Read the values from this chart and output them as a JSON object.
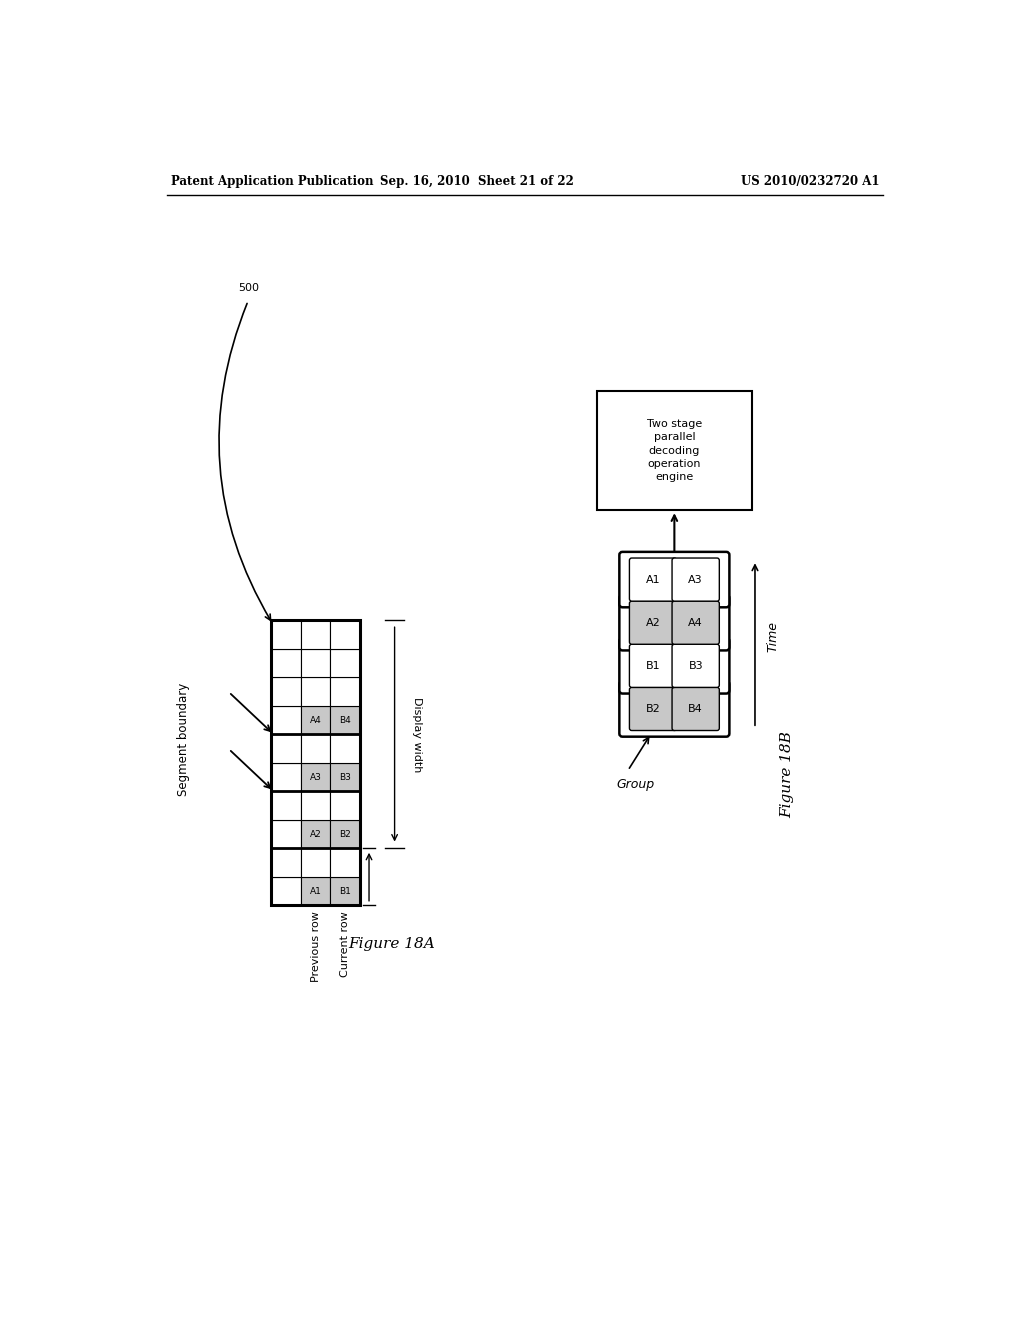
{
  "header_left": "Patent Application Publication",
  "header_mid": "Sep. 16, 2010  Sheet 21 of 22",
  "header_right": "US 2010/0232720 A1",
  "fig_label_500": "500",
  "fig18a_label": "Figure 18A",
  "fig18b_label": "Figure 18B",
  "grid_num_rows": 10,
  "grid_num_cols": 3,
  "highlighted_cells_18a": [
    {
      "row": 0,
      "col": 1,
      "label": "A1"
    },
    {
      "row": 0,
      "col": 2,
      "label": "B1"
    },
    {
      "row": 2,
      "col": 1,
      "label": "A2"
    },
    {
      "row": 2,
      "col": 2,
      "label": "B2"
    },
    {
      "row": 4,
      "col": 1,
      "label": "A3"
    },
    {
      "row": 4,
      "col": 2,
      "label": "B3"
    },
    {
      "row": 6,
      "col": 1,
      "label": "A4"
    },
    {
      "row": 6,
      "col": 2,
      "label": "B4"
    }
  ],
  "segment_boundary_rows": [
    2,
    4,
    6
  ],
  "display_width_label": "Display width",
  "prev_row_label": "Previous row",
  "curr_row_label": "Current row",
  "segment_boundary_text": "Segment boundary",
  "engine_box_text": "Two stage\nparallel\ndecoding\noperation\nengine",
  "groups_18b": [
    {
      "labels": [
        "A1",
        "A3"
      ],
      "gray": [
        false,
        false
      ]
    },
    {
      "labels": [
        "A2",
        "A4"
      ],
      "gray": [
        true,
        true
      ]
    },
    {
      "labels": [
        "B1",
        "B3"
      ],
      "gray": [
        false,
        false
      ]
    },
    {
      "labels": [
        "B2",
        "B4"
      ],
      "gray": [
        true,
        true
      ]
    }
  ],
  "time_label": "Time",
  "group_label": "Group",
  "bg_color": "#ffffff",
  "cell_highlight_color": "#c8c8c8",
  "cell_border_color": "#000000",
  "text_color": "#000000"
}
